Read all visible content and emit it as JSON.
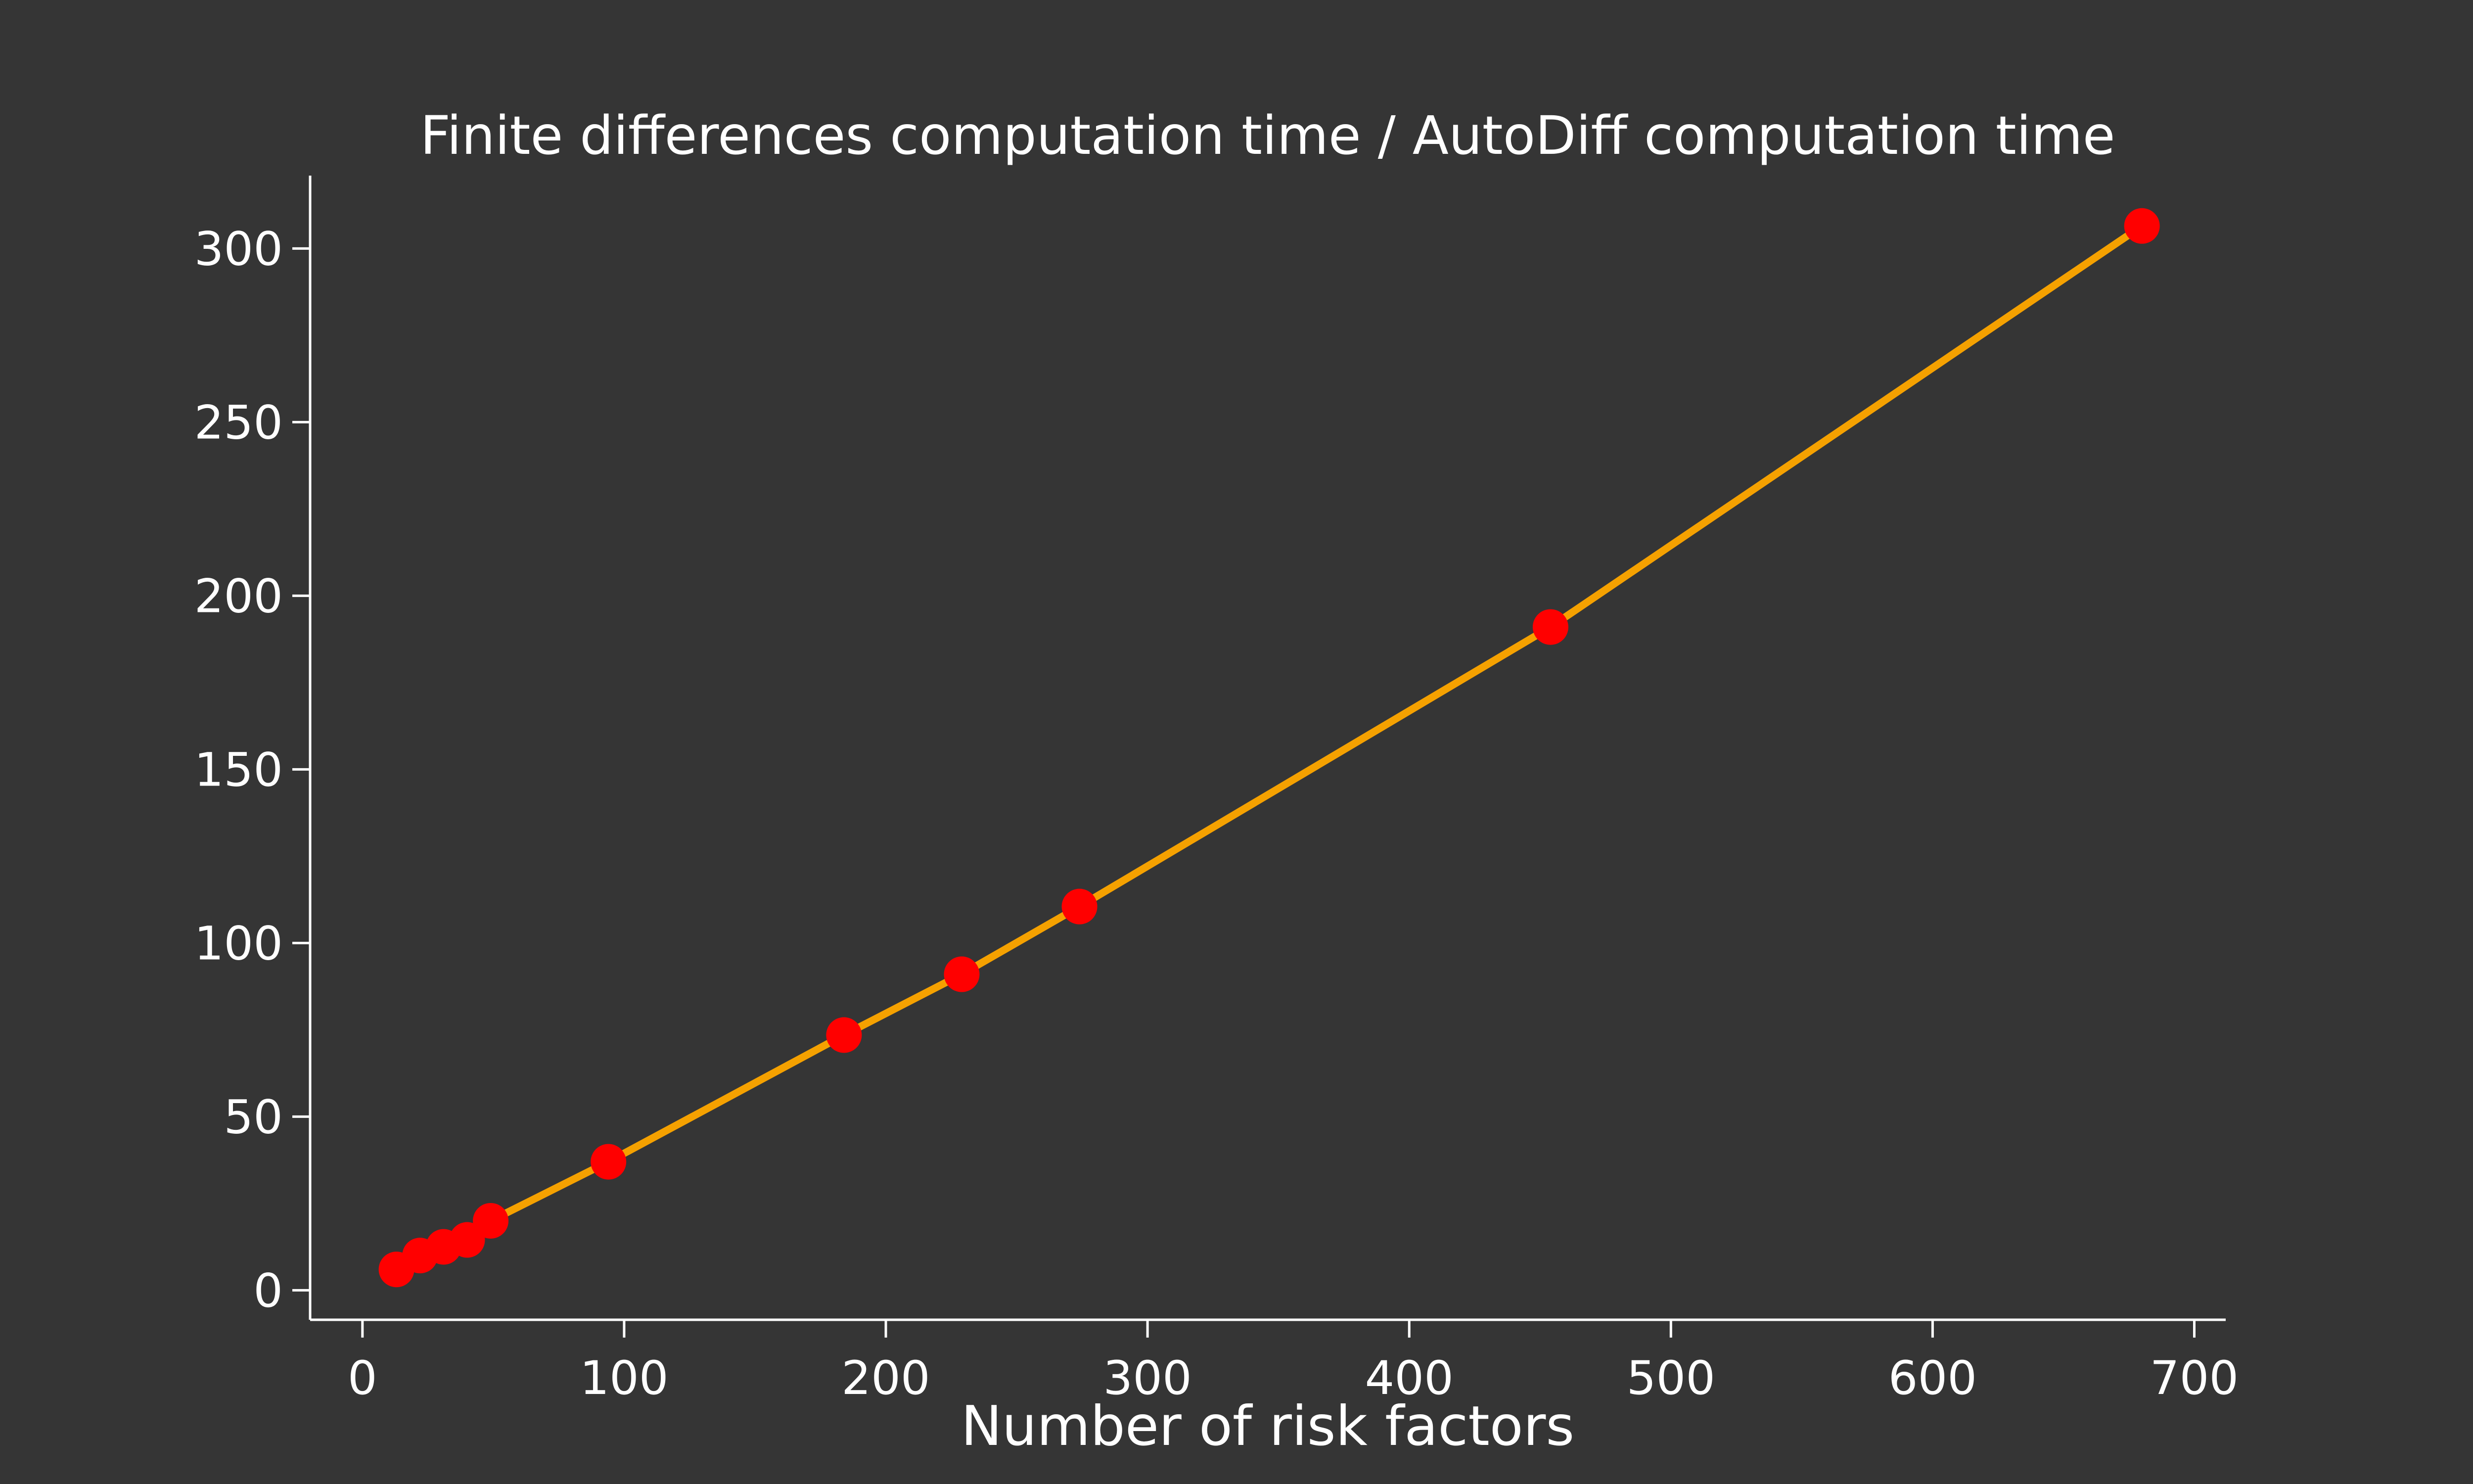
{
  "chart_data": {
    "type": "line",
    "title": "Finite differences computation time / AutoDiff computation time",
    "xlabel": "Number of risk factors",
    "ylabel": "",
    "xlim": [
      -20,
      712
    ],
    "ylim": [
      -8.5,
      321
    ],
    "xticks": [
      0,
      100,
      200,
      300,
      400,
      500,
      600,
      700
    ],
    "yticks": [
      0,
      50,
      100,
      150,
      200,
      250,
      300
    ],
    "grid": false,
    "series": [
      {
        "line_color": "#f5a100",
        "marker_color": "#ff0000",
        "x": [
          13,
          22,
          31,
          40,
          49,
          94,
          184,
          229,
          274,
          454,
          680
        ],
        "y": [
          6,
          10,
          12.5,
          14.5,
          20,
          37,
          73.5,
          91,
          110.5,
          191,
          306.5
        ]
      }
    ]
  }
}
